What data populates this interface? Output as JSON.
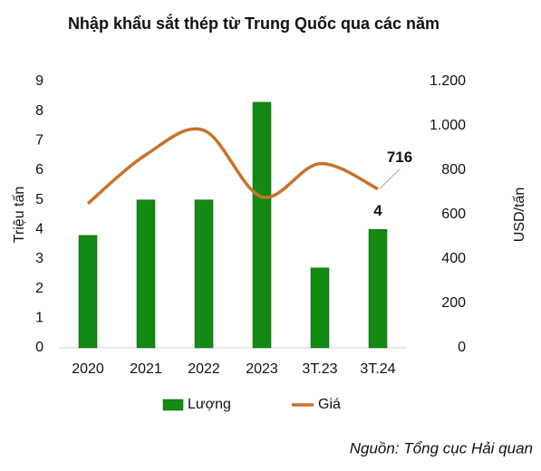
{
  "chart_data": {
    "type": "bar_line",
    "title": "Nhập khẩu sắt thép từ Trung Quốc qua các năm",
    "y_label": "Triệu tấn",
    "y2_label": "USD/tấn",
    "source": "Nguồn: Tổng cục Hải quan",
    "categories": [
      "2020",
      "2021",
      "2022",
      "2023",
      "3T.23",
      "3T.24"
    ],
    "series": [
      {
        "name": "Lượng",
        "type": "bar",
        "color": "#138a13",
        "values": [
          3.8,
          5.0,
          5.0,
          8.3,
          2.7,
          4
        ],
        "value_labels": [
          null,
          null,
          null,
          null,
          null,
          "4"
        ]
      },
      {
        "name": "Giá",
        "type": "line",
        "axis": "y2",
        "color": "#c8722c",
        "values": [
          650,
          870,
          980,
          680,
          830,
          716
        ],
        "value_labels": [
          null,
          null,
          null,
          null,
          null,
          "716"
        ]
      }
    ],
    "ylim": [
      0,
      9
    ],
    "yticks": [
      0,
      1,
      2,
      3,
      4,
      5,
      6,
      7,
      8,
      9
    ],
    "y2lim": [
      0,
      1200
    ],
    "y2ticks": [
      0,
      200,
      400,
      600,
      800,
      {
        "value": 1000,
        "label": "1.000"
      },
      {
        "value": 1200,
        "label": "1.200"
      }
    ],
    "grid": false,
    "legend": "bottom"
  }
}
